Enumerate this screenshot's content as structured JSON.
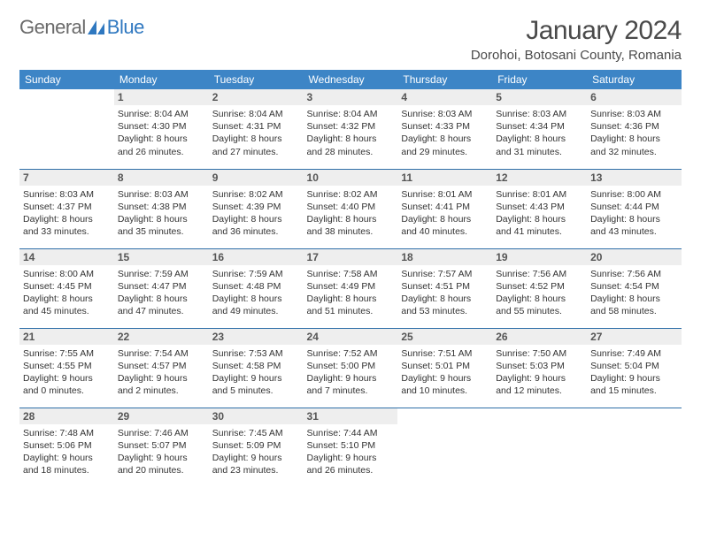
{
  "brand": {
    "part1": "General",
    "part2": "Blue",
    "text_color": "#6a6a6a",
    "accent_color": "#2f78c0"
  },
  "title": "January 2024",
  "location": "Dorohoi, Botosani County, Romania",
  "style": {
    "header_bg": "#3d85c6",
    "header_fg": "#ffffff",
    "row_divider": "#2f6fa8",
    "daynum_bg": "#eeeeee",
    "body_font_size": 10.5,
    "header_font_size": 12,
    "title_font_size": 30,
    "location_font_size": 15
  },
  "weekdays": [
    "Sunday",
    "Monday",
    "Tuesday",
    "Wednesday",
    "Thursday",
    "Friday",
    "Saturday"
  ],
  "rows": [
    [
      null,
      {
        "n": "1",
        "sr": "8:04 AM",
        "ss": "4:30 PM",
        "dl": "8 hours and 26 minutes."
      },
      {
        "n": "2",
        "sr": "8:04 AM",
        "ss": "4:31 PM",
        "dl": "8 hours and 27 minutes."
      },
      {
        "n": "3",
        "sr": "8:04 AM",
        "ss": "4:32 PM",
        "dl": "8 hours and 28 minutes."
      },
      {
        "n": "4",
        "sr": "8:03 AM",
        "ss": "4:33 PM",
        "dl": "8 hours and 29 minutes."
      },
      {
        "n": "5",
        "sr": "8:03 AM",
        "ss": "4:34 PM",
        "dl": "8 hours and 31 minutes."
      },
      {
        "n": "6",
        "sr": "8:03 AM",
        "ss": "4:36 PM",
        "dl": "8 hours and 32 minutes."
      }
    ],
    [
      {
        "n": "7",
        "sr": "8:03 AM",
        "ss": "4:37 PM",
        "dl": "8 hours and 33 minutes."
      },
      {
        "n": "8",
        "sr": "8:03 AM",
        "ss": "4:38 PM",
        "dl": "8 hours and 35 minutes."
      },
      {
        "n": "9",
        "sr": "8:02 AM",
        "ss": "4:39 PM",
        "dl": "8 hours and 36 minutes."
      },
      {
        "n": "10",
        "sr": "8:02 AM",
        "ss": "4:40 PM",
        "dl": "8 hours and 38 minutes."
      },
      {
        "n": "11",
        "sr": "8:01 AM",
        "ss": "4:41 PM",
        "dl": "8 hours and 40 minutes."
      },
      {
        "n": "12",
        "sr": "8:01 AM",
        "ss": "4:43 PM",
        "dl": "8 hours and 41 minutes."
      },
      {
        "n": "13",
        "sr": "8:00 AM",
        "ss": "4:44 PM",
        "dl": "8 hours and 43 minutes."
      }
    ],
    [
      {
        "n": "14",
        "sr": "8:00 AM",
        "ss": "4:45 PM",
        "dl": "8 hours and 45 minutes."
      },
      {
        "n": "15",
        "sr": "7:59 AM",
        "ss": "4:47 PM",
        "dl": "8 hours and 47 minutes."
      },
      {
        "n": "16",
        "sr": "7:59 AM",
        "ss": "4:48 PM",
        "dl": "8 hours and 49 minutes."
      },
      {
        "n": "17",
        "sr": "7:58 AM",
        "ss": "4:49 PM",
        "dl": "8 hours and 51 minutes."
      },
      {
        "n": "18",
        "sr": "7:57 AM",
        "ss": "4:51 PM",
        "dl": "8 hours and 53 minutes."
      },
      {
        "n": "19",
        "sr": "7:56 AM",
        "ss": "4:52 PM",
        "dl": "8 hours and 55 minutes."
      },
      {
        "n": "20",
        "sr": "7:56 AM",
        "ss": "4:54 PM",
        "dl": "8 hours and 58 minutes."
      }
    ],
    [
      {
        "n": "21",
        "sr": "7:55 AM",
        "ss": "4:55 PM",
        "dl": "9 hours and 0 minutes."
      },
      {
        "n": "22",
        "sr": "7:54 AM",
        "ss": "4:57 PM",
        "dl": "9 hours and 2 minutes."
      },
      {
        "n": "23",
        "sr": "7:53 AM",
        "ss": "4:58 PM",
        "dl": "9 hours and 5 minutes."
      },
      {
        "n": "24",
        "sr": "7:52 AM",
        "ss": "5:00 PM",
        "dl": "9 hours and 7 minutes."
      },
      {
        "n": "25",
        "sr": "7:51 AM",
        "ss": "5:01 PM",
        "dl": "9 hours and 10 minutes."
      },
      {
        "n": "26",
        "sr": "7:50 AM",
        "ss": "5:03 PM",
        "dl": "9 hours and 12 minutes."
      },
      {
        "n": "27",
        "sr": "7:49 AM",
        "ss": "5:04 PM",
        "dl": "9 hours and 15 minutes."
      }
    ],
    [
      {
        "n": "28",
        "sr": "7:48 AM",
        "ss": "5:06 PM",
        "dl": "9 hours and 18 minutes."
      },
      {
        "n": "29",
        "sr": "7:46 AM",
        "ss": "5:07 PM",
        "dl": "9 hours and 20 minutes."
      },
      {
        "n": "30",
        "sr": "7:45 AM",
        "ss": "5:09 PM",
        "dl": "9 hours and 23 minutes."
      },
      {
        "n": "31",
        "sr": "7:44 AM",
        "ss": "5:10 PM",
        "dl": "9 hours and 26 minutes."
      },
      null,
      null,
      null
    ]
  ],
  "labels": {
    "sunrise": "Sunrise:",
    "sunset": "Sunset:",
    "daylight": "Daylight:"
  }
}
